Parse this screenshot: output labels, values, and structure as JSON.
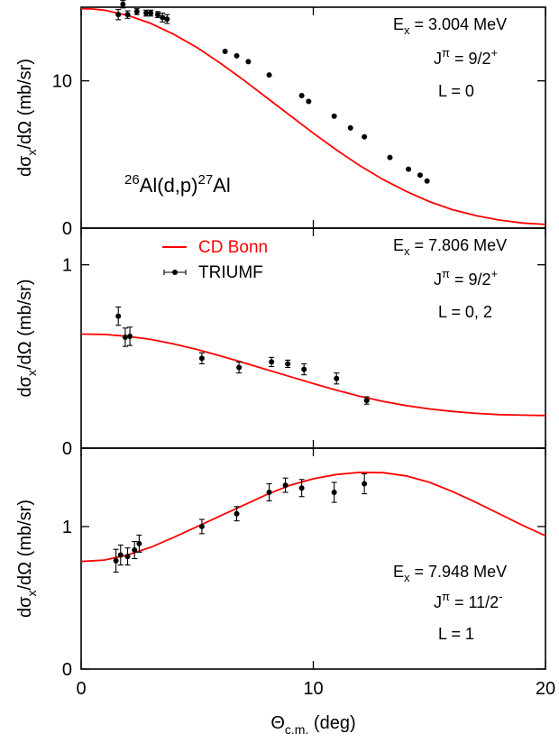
{
  "chart_data": [
    {
      "type": "scatter",
      "panel": "top",
      "xlim": [
        0,
        20
      ],
      "ylim": [
        0,
        15
      ],
      "yticks": [
        "0",
        "10"
      ],
      "ytick_values": [
        0,
        10
      ],
      "ylabel_main": "dσ",
      "ylabel_sub": "x",
      "ylabel_rest": "/dΩ (mb/sr)",
      "annotations": [
        {
          "main": "E",
          "sub": "x",
          "rest": " = 3.004 MeV"
        },
        {
          "main": "J",
          "sup1": "π",
          "rest": " = 9/2",
          "sup2": "+"
        },
        {
          "main": "L = 0"
        }
      ],
      "reaction": {
        "sup1": "26",
        "mid": "Al(d,p)",
        "sup2": "27",
        "end": "Al"
      },
      "series": [
        {
          "kind": "curve",
          "color": "#ff0000",
          "x": [
            0,
            0.5,
            1,
            2,
            3,
            4,
            5,
            6,
            7,
            8,
            9,
            10,
            11,
            12,
            13,
            14,
            15,
            16,
            17,
            18,
            19,
            20
          ],
          "y": [
            14.9,
            14.88,
            14.8,
            14.45,
            13.9,
            13.15,
            12.25,
            11.2,
            10.05,
            8.85,
            7.65,
            6.45,
            5.3,
            4.25,
            3.3,
            2.5,
            1.8,
            1.25,
            0.85,
            0.55,
            0.35,
            0.25
          ]
        },
        {
          "kind": "points",
          "color": "#000000",
          "x": [
            1.6,
            1.8,
            2.0,
            2.4,
            2.8,
            3.0,
            3.3,
            3.5,
            3.7,
            6.2,
            6.7,
            7.2,
            8.1,
            9.5,
            9.8,
            10.9,
            11.6,
            12.2,
            13.3,
            14.1,
            14.6,
            14.9
          ],
          "y": [
            14.5,
            15.2,
            14.5,
            14.7,
            14.6,
            14.6,
            14.5,
            14.3,
            14.2,
            12.0,
            11.7,
            11.3,
            10.4,
            9.0,
            8.6,
            7.6,
            6.8,
            6.2,
            4.8,
            4.0,
            3.6,
            3.2
          ],
          "err": [
            0.35,
            0.25,
            0.25,
            0.2,
            0.2,
            0.2,
            0.2,
            0.3,
            0.3,
            0,
            0,
            0,
            0,
            0,
            0,
            0,
            0,
            0,
            0,
            0,
            0,
            0
          ]
        }
      ]
    },
    {
      "type": "scatter",
      "panel": "middle",
      "xlim": [
        0,
        20
      ],
      "ylim": [
        0,
        1.2
      ],
      "yticks": [
        "0",
        "1"
      ],
      "ytick_values": [
        0,
        1
      ],
      "ylabel_main": "dσ",
      "ylabel_sub": "x",
      "ylabel_rest": "/dΩ (mb/sr)",
      "annotations": [
        {
          "main": "E",
          "sub": "x",
          "rest": " = 7.806 MeV"
        },
        {
          "main": "J",
          "sup1": "π",
          "rest": " = 9/2",
          "sup2": "+"
        },
        {
          "main": "L = 0, 2"
        }
      ],
      "legend": [
        {
          "label": "CD Bonn",
          "color": "#ff0000",
          "kind": "line"
        },
        {
          "label": "TRIUMF",
          "color": "#000000",
          "kind": "point"
        }
      ],
      "series": [
        {
          "kind": "curve",
          "color": "#ff0000",
          "name": "CD Bonn",
          "x": [
            0,
            1,
            2,
            3,
            4,
            5,
            6,
            7,
            8,
            9,
            10,
            11,
            12,
            13,
            14,
            15,
            16,
            17,
            18,
            19,
            20
          ],
          "y": [
            0.622,
            0.62,
            0.61,
            0.593,
            0.568,
            0.538,
            0.503,
            0.466,
            0.428,
            0.39,
            0.352,
            0.316,
            0.283,
            0.255,
            0.232,
            0.214,
            0.2,
            0.19,
            0.183,
            0.18,
            0.178
          ]
        },
        {
          "kind": "points",
          "color": "#000000",
          "name": "TRIUMF",
          "x": [
            1.6,
            1.9,
            2.1,
            5.2,
            6.8,
            8.2,
            8.9,
            9.6,
            11.0,
            12.3
          ],
          "y": [
            0.72,
            0.605,
            0.61,
            0.49,
            0.44,
            0.47,
            0.46,
            0.43,
            0.38,
            0.26
          ],
          "err": [
            0.05,
            0.05,
            0.05,
            0.03,
            0.03,
            0.025,
            0.02,
            0.03,
            0.03,
            0.02
          ]
        }
      ]
    },
    {
      "type": "scatter",
      "panel": "bottom",
      "xlim": [
        0,
        20
      ],
      "ylim": [
        0,
        1.55
      ],
      "yticks": [
        "0",
        "1"
      ],
      "ytick_values": [
        0,
        1
      ],
      "xticks": [
        "0",
        "10",
        "20"
      ],
      "xtick_values": [
        0,
        10,
        20
      ],
      "xlabel_main": "Θ",
      "xlabel_sub": "c.m.",
      "xlabel_rest": " (deg)",
      "ylabel_main": "dσ",
      "ylabel_sub": "x",
      "ylabel_rest": "/dΩ (mb/sr)",
      "annotations": [
        {
          "main": "E",
          "sub": "x",
          "rest": " = 7.948 MeV"
        },
        {
          "main": "J",
          "sup1": "π",
          "rest": " = 11/2",
          "sup2": "-"
        },
        {
          "main": "L = 1"
        }
      ],
      "series": [
        {
          "kind": "curve",
          "color": "#ff0000",
          "x": [
            0,
            1,
            2,
            3,
            4,
            5,
            6,
            7,
            8,
            9,
            10,
            11,
            12,
            13,
            14,
            15,
            16,
            17,
            18,
            19,
            20
          ],
          "y": [
            0.755,
            0.765,
            0.8,
            0.855,
            0.925,
            1.0,
            1.075,
            1.15,
            1.225,
            1.29,
            1.335,
            1.365,
            1.38,
            1.378,
            1.355,
            1.31,
            1.245,
            1.17,
            1.09,
            1.01,
            0.935
          ]
        },
        {
          "kind": "points",
          "color": "#000000",
          "x": [
            1.5,
            1.7,
            2.0,
            2.3,
            2.5,
            5.2,
            6.7,
            8.1,
            8.8,
            9.5,
            10.9,
            12.2
          ],
          "y": [
            0.76,
            0.8,
            0.79,
            0.835,
            0.88,
            1.0,
            1.09,
            1.24,
            1.29,
            1.27,
            1.24,
            1.3
          ],
          "err": [
            0.08,
            0.07,
            0.06,
            0.06,
            0.06,
            0.05,
            0.05,
            0.06,
            0.05,
            0.06,
            0.07,
            0.07
          ]
        }
      ]
    }
  ]
}
